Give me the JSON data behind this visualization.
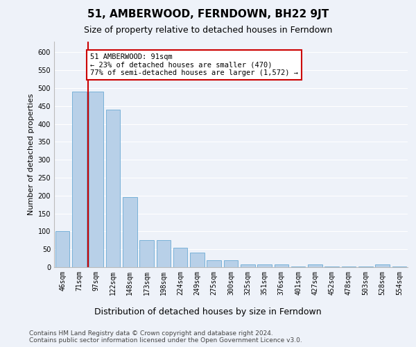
{
  "title": "51, AMBERWOOD, FERNDOWN, BH22 9JT",
  "subtitle": "Size of property relative to detached houses in Ferndown",
  "xlabel": "Distribution of detached houses by size in Ferndown",
  "ylabel": "Number of detached properties",
  "categories": [
    "46sqm",
    "71sqm",
    "97sqm",
    "122sqm",
    "148sqm",
    "173sqm",
    "198sqm",
    "224sqm",
    "249sqm",
    "275sqm",
    "300sqm",
    "325sqm",
    "351sqm",
    "376sqm",
    "401sqm",
    "427sqm",
    "452sqm",
    "478sqm",
    "503sqm",
    "528sqm",
    "554sqm"
  ],
  "values": [
    100,
    490,
    490,
    440,
    195,
    75,
    75,
    55,
    40,
    20,
    20,
    8,
    8,
    8,
    2,
    8,
    2,
    2,
    2,
    8,
    2
  ],
  "bar_color": "#b8d0e8",
  "bar_edge_color": "#6aaad4",
  "vline_color": "#cc0000",
  "vline_x": 1.5,
  "annotation_text": "51 AMBERWOOD: 91sqm\n← 23% of detached houses are smaller (470)\n77% of semi-detached houses are larger (1,572) →",
  "annotation_box_facecolor": "#ffffff",
  "annotation_box_edgecolor": "#cc0000",
  "ylim": [
    0,
    630
  ],
  "yticks": [
    0,
    50,
    100,
    150,
    200,
    250,
    300,
    350,
    400,
    450,
    500,
    550,
    600
  ],
  "background_color": "#eef2f9",
  "plot_background": "#eef2f9",
  "grid_color": "#ffffff",
  "title_fontsize": 11,
  "subtitle_fontsize": 9,
  "ylabel_fontsize": 8,
  "xlabel_fontsize": 9,
  "tick_fontsize": 7,
  "footer_fontsize": 6.5,
  "ann_fontsize": 7.5,
  "footer": "Contains HM Land Registry data © Crown copyright and database right 2024.\nContains public sector information licensed under the Open Government Licence v3.0."
}
